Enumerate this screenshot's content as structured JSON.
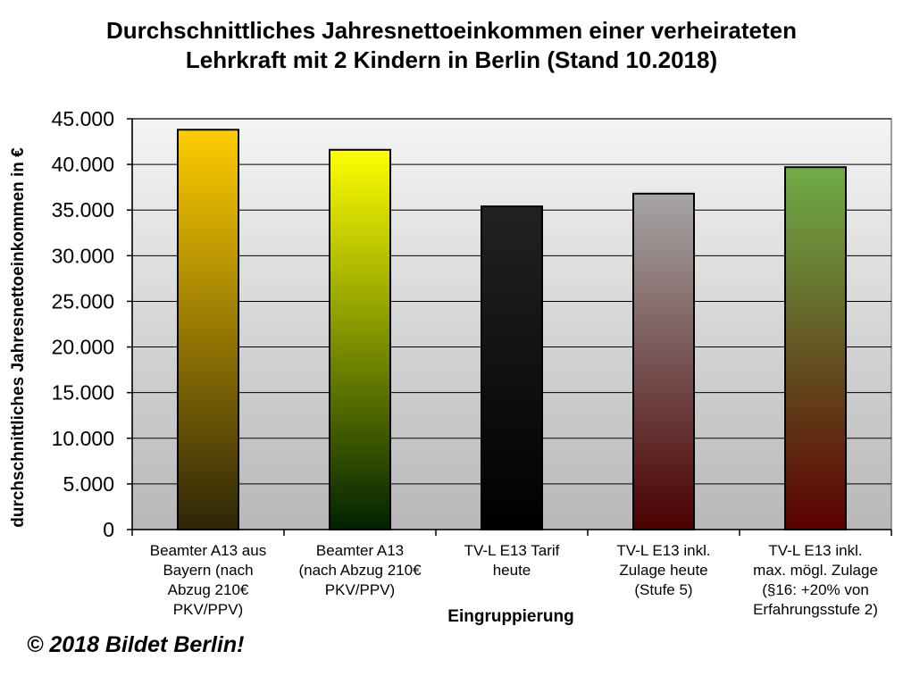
{
  "chart_data": {
    "type": "bar",
    "title": [
      "Durchschnittliches Jahresnettoeinkommen einer verheirateten",
      "Lehrkraft mit 2 Kindern in Berlin (Stand 10.2018)"
    ],
    "xlabel": "Eingruppierung",
    "ylabel": "durchschnittliches Jahresnettoeinkommen in €",
    "ylim": [
      0,
      45000
    ],
    "yticks": [
      "0",
      "5.000",
      "10.000",
      "15.000",
      "20.000",
      "25.000",
      "30.000",
      "35.000",
      "40.000",
      "45.000"
    ],
    "ytick_values": [
      0,
      5000,
      10000,
      15000,
      20000,
      25000,
      30000,
      35000,
      40000,
      45000
    ],
    "grid": true,
    "categories": [
      [
        "Beamter A13 aus",
        "Bayern (nach",
        "Abzug 210€",
        "PKV/PPV)"
      ],
      [
        "Beamter A13",
        "(nach Abzug 210€",
        "PKV/PPV)"
      ],
      [
        "TV-L E13 Tarif",
        "heute"
      ],
      [
        "TV-L E13 inkl.",
        "Zulage heute",
        "(Stufe 5)"
      ],
      [
        "TV-L E13 inkl.",
        "max. mögl. Zulage",
        "(§16: +20% von",
        "Erfahrungsstufe 2)"
      ]
    ],
    "values": [
      43800,
      41600,
      35400,
      36800,
      39700
    ],
    "bar_colors": [
      {
        "top": "#ffcc00",
        "bottom": "#2e2508"
      },
      {
        "top": "#ffff00",
        "bottom": "#002200"
      },
      {
        "top": "#222222",
        "bottom": "#000000"
      },
      {
        "top": "#a6a6a6",
        "bottom": "#4a0000"
      },
      {
        "top": "#70ad47",
        "bottom": "#5a0000"
      }
    ]
  },
  "footer": "© 2018 Bildet Berlin!"
}
